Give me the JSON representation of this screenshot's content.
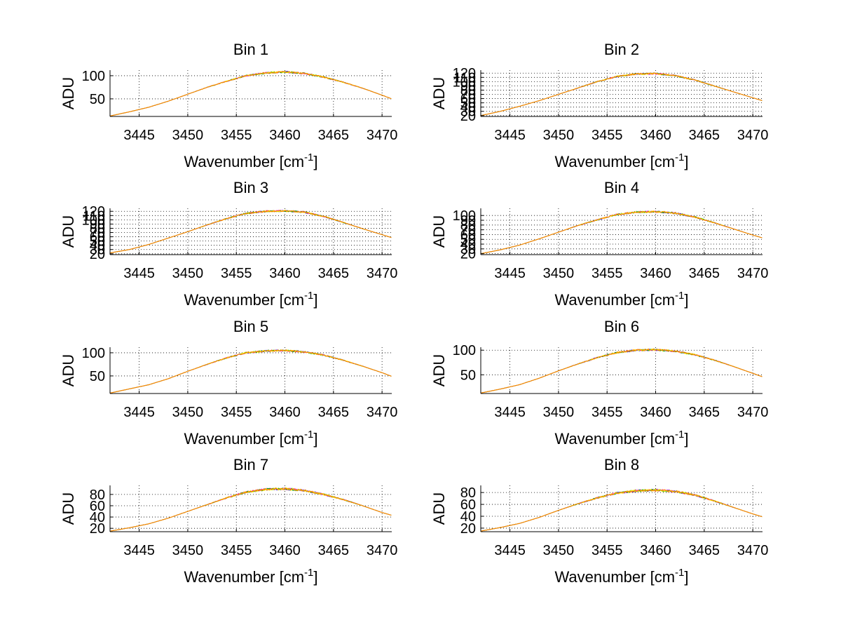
{
  "chart_data": [
    {
      "type": "line",
      "title": "Bin 1",
      "xlabel": "Wavenumber [cm",
      "xlabel_sup": "-1",
      "xlabel_end": "]",
      "ylabel": "ADU",
      "xlim": [
        3442,
        3471
      ],
      "ylim": [
        12,
        112
      ],
      "xticks": [
        3445,
        3450,
        3455,
        3460,
        3465,
        3470
      ],
      "yticks": [
        50,
        100
      ],
      "grid": true,
      "series_colors": [
        "#0000ff",
        "#ff00ff",
        "#00aa00",
        "#ffff00",
        "#ff8000"
      ],
      "x": [
        3442,
        3444,
        3446,
        3448,
        3450,
        3452,
        3454,
        3456,
        3458,
        3460,
        3462,
        3464,
        3466,
        3468,
        3470,
        3471
      ],
      "y": [
        13,
        22,
        32,
        45,
        60,
        75,
        88,
        100,
        106,
        108,
        105,
        97,
        86,
        73,
        58,
        50
      ]
    },
    {
      "type": "line",
      "title": "Bin 2",
      "xlabel": "Wavenumber [cm",
      "xlabel_sup": "-1",
      "xlabel_end": "]",
      "ylabel": "ADU",
      "xlim": [
        3442,
        3471
      ],
      "ylim": [
        18,
        127
      ],
      "xticks": [
        3445,
        3450,
        3455,
        3460,
        3465,
        3470
      ],
      "yticks": [
        20,
        30,
        40,
        50,
        60,
        70,
        80,
        90,
        100,
        110,
        120
      ],
      "grid": true,
      "series_colors": [
        "#0000ff",
        "#ff00ff",
        "#00aa00",
        "#ffff00",
        "#ff8000"
      ],
      "x": [
        3442,
        3444,
        3446,
        3448,
        3450,
        3452,
        3454,
        3456,
        3458,
        3460,
        3462,
        3464,
        3466,
        3468,
        3470,
        3471
      ],
      "y": [
        20,
        30,
        42,
        55,
        70,
        85,
        100,
        112,
        118,
        119,
        114,
        104,
        90,
        76,
        62,
        55
      ]
    },
    {
      "type": "line",
      "title": "Bin 3",
      "xlabel": "Wavenumber [cm",
      "xlabel_sup": "-1",
      "xlabel_end": "]",
      "ylabel": "ADU",
      "xlim": [
        3442,
        3471
      ],
      "ylim": [
        18,
        127
      ],
      "xticks": [
        3445,
        3450,
        3455,
        3460,
        3465,
        3470
      ],
      "yticks": [
        20,
        30,
        40,
        50,
        60,
        70,
        80,
        90,
        100,
        110,
        120
      ],
      "grid": true,
      "series_colors": [
        "#0000ff",
        "#ff00ff",
        "#00aa00",
        "#ffff00",
        "#ff8000"
      ],
      "x": [
        3442,
        3444,
        3446,
        3448,
        3450,
        3452,
        3454,
        3456,
        3458,
        3460,
        3462,
        3464,
        3466,
        3468,
        3470,
        3471
      ],
      "y": [
        22,
        30,
        42,
        57,
        72,
        88,
        103,
        115,
        120,
        121,
        118,
        108,
        94,
        79,
        65,
        58
      ]
    },
    {
      "type": "line",
      "title": "Bin 4",
      "xlabel": "Wavenumber [cm",
      "xlabel_sup": "-1",
      "xlabel_end": "]",
      "ylabel": "ADU",
      "xlim": [
        3442,
        3471
      ],
      "ylim": [
        18,
        115
      ],
      "xticks": [
        3445,
        3450,
        3455,
        3460,
        3465,
        3470
      ],
      "yticks": [
        20,
        30,
        40,
        50,
        60,
        70,
        80,
        90,
        100
      ],
      "grid": true,
      "series_colors": [
        "#0000ff",
        "#ff00ff",
        "#00aa00",
        "#ffff00",
        "#ff8000"
      ],
      "x": [
        3442,
        3444,
        3446,
        3448,
        3450,
        3452,
        3454,
        3456,
        3458,
        3460,
        3462,
        3464,
        3466,
        3468,
        3470,
        3471
      ],
      "y": [
        20,
        28,
        38,
        51,
        65,
        79,
        91,
        102,
        107,
        108,
        105,
        97,
        85,
        72,
        59,
        53
      ]
    },
    {
      "type": "line",
      "title": "Bin 5",
      "xlabel": "Wavenumber [cm",
      "xlabel_sup": "-1",
      "xlabel_end": "]",
      "ylabel": "ADU",
      "xlim": [
        3442,
        3471
      ],
      "ylim": [
        12,
        112
      ],
      "xticks": [
        3445,
        3450,
        3455,
        3460,
        3465,
        3470
      ],
      "yticks": [
        50,
        100
      ],
      "grid": true,
      "series_colors": [
        "#0000ff",
        "#ff00ff",
        "#00aa00",
        "#ffff00",
        "#ff8000"
      ],
      "x": [
        3442,
        3444,
        3446,
        3448,
        3450,
        3452,
        3454,
        3456,
        3458,
        3460,
        3462,
        3464,
        3466,
        3468,
        3470,
        3471
      ],
      "y": [
        13,
        22,
        31,
        44,
        60,
        75,
        89,
        100,
        104,
        105,
        102,
        95,
        84,
        71,
        57,
        49
      ]
    },
    {
      "type": "line",
      "title": "Bin 6",
      "xlabel": "Wavenumber [cm",
      "xlabel_sup": "-1",
      "xlabel_end": "]",
      "ylabel": "ADU",
      "xlim": [
        3442,
        3471
      ],
      "ylim": [
        12,
        106
      ],
      "xticks": [
        3445,
        3450,
        3455,
        3460,
        3465,
        3470
      ],
      "yticks": [
        50,
        100
      ],
      "grid": true,
      "series_colors": [
        "#0000ff",
        "#ff00ff",
        "#00aa00",
        "#ffff00",
        "#ff8000"
      ],
      "x": [
        3442,
        3444,
        3446,
        3448,
        3450,
        3452,
        3454,
        3456,
        3458,
        3460,
        3462,
        3464,
        3466,
        3468,
        3470,
        3471
      ],
      "y": [
        13,
        21,
        30,
        43,
        58,
        72,
        85,
        95,
        100,
        101,
        98,
        91,
        80,
        67,
        53,
        46
      ]
    },
    {
      "type": "line",
      "title": "Bin 7",
      "xlabel": "Wavenumber [cm",
      "xlabel_sup": "-1",
      "xlabel_end": "]",
      "ylabel": "ADU",
      "xlim": [
        3442,
        3471
      ],
      "ylim": [
        14,
        96
      ],
      "xticks": [
        3445,
        3450,
        3455,
        3460,
        3465,
        3470
      ],
      "yticks": [
        20,
        40,
        60,
        80
      ],
      "grid": true,
      "series_colors": [
        "#0000ff",
        "#ff00ff",
        "#00aa00",
        "#ffff00",
        "#ff8000"
      ],
      "x": [
        3442,
        3444,
        3446,
        3448,
        3450,
        3452,
        3454,
        3456,
        3458,
        3460,
        3462,
        3464,
        3466,
        3468,
        3470,
        3471
      ],
      "y": [
        15,
        21,
        28,
        38,
        50,
        62,
        74,
        84,
        89,
        90,
        87,
        80,
        71,
        60,
        48,
        43
      ]
    },
    {
      "type": "line",
      "title": "Bin 8",
      "xlabel": "Wavenumber [cm",
      "xlabel_sup": "-1",
      "xlabel_end": "]",
      "ylabel": "ADU",
      "xlim": [
        3442,
        3471
      ],
      "ylim": [
        14,
        92
      ],
      "xticks": [
        3445,
        3450,
        3455,
        3460,
        3465,
        3470
      ],
      "yticks": [
        20,
        40,
        60,
        80
      ],
      "grid": true,
      "series_colors": [
        "#0000ff",
        "#ff00ff",
        "#00aa00",
        "#ffff00",
        "#ff8000"
      ],
      "x": [
        3442,
        3444,
        3446,
        3448,
        3450,
        3452,
        3454,
        3456,
        3458,
        3460,
        3462,
        3464,
        3466,
        3468,
        3470,
        3471
      ],
      "y": [
        15,
        21,
        28,
        38,
        50,
        61,
        71,
        79,
        83,
        84,
        82,
        76,
        66,
        55,
        44,
        39
      ]
    }
  ]
}
